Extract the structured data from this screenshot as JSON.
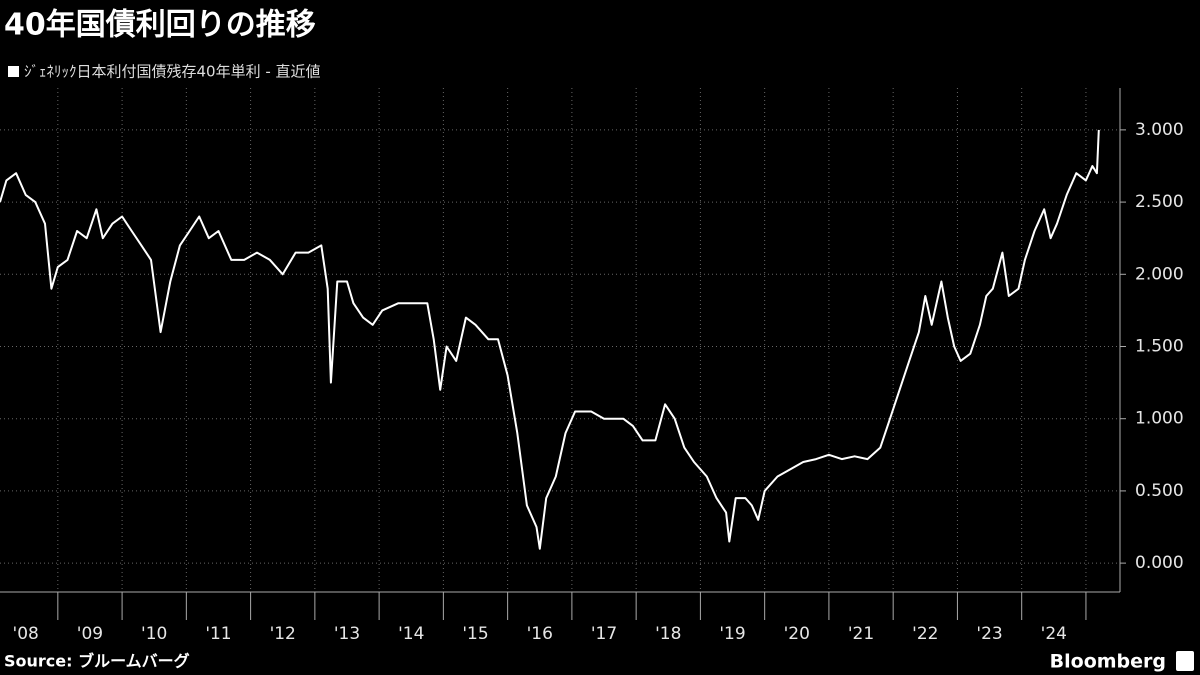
{
  "chart_data": {
    "type": "line",
    "title": "40年国債利回りの推移",
    "source": "Source: ブルームバーグ",
    "brand": "Bloomberg",
    "series": [
      {
        "name": "ｼﾞｪﾈﾘｯｸ日本利付国債残存40年単利 - 直近値",
        "color": "#ffffff",
        "x": [
          2008.1,
          2008.2,
          2008.35,
          2008.5,
          2008.65,
          2008.8,
          2008.9,
          2009.0,
          2009.15,
          2009.3,
          2009.45,
          2009.6,
          2009.7,
          2009.85,
          2010.0,
          2010.15,
          2010.3,
          2010.45,
          2010.6,
          2010.75,
          2010.9,
          2011.05,
          2011.2,
          2011.35,
          2011.5,
          2011.7,
          2011.9,
          2012.1,
          2012.3,
          2012.5,
          2012.7,
          2012.9,
          2013.1,
          2013.2,
          2013.25,
          2013.35,
          2013.5,
          2013.6,
          2013.75,
          2013.9,
          2014.05,
          2014.3,
          2014.5,
          2014.75,
          2014.85,
          2014.95,
          2015.05,
          2015.2,
          2015.35,
          2015.5,
          2015.7,
          2015.85,
          2016.0,
          2016.15,
          2016.3,
          2016.45,
          2016.5,
          2016.6,
          2016.75,
          2016.9,
          2017.05,
          2017.3,
          2017.5,
          2017.8,
          2017.95,
          2018.1,
          2018.3,
          2018.45,
          2018.6,
          2018.75,
          2018.9,
          2019.1,
          2019.25,
          2019.4,
          2019.45,
          2019.55,
          2019.7,
          2019.8,
          2019.9,
          2020.0,
          2020.2,
          2020.4,
          2020.6,
          2020.8,
          2021.0,
          2021.2,
          2021.4,
          2021.6,
          2021.8,
          2021.95,
          2022.1,
          2022.25,
          2022.4,
          2022.5,
          2022.6,
          2022.75,
          2022.85,
          2022.95,
          2023.05,
          2023.2,
          2023.35,
          2023.45,
          2023.55,
          2023.7,
          2023.8,
          2023.95,
          2024.05,
          2024.2,
          2024.35,
          2024.45,
          2024.55,
          2024.7,
          2024.85,
          2025.0,
          2025.1,
          2025.17,
          2025.2
        ],
        "values": [
          2.5,
          2.65,
          2.7,
          2.55,
          2.5,
          2.35,
          1.9,
          2.05,
          2.1,
          2.3,
          2.25,
          2.45,
          2.25,
          2.35,
          2.4,
          2.3,
          2.2,
          2.1,
          1.6,
          1.95,
          2.2,
          2.3,
          2.4,
          2.25,
          2.3,
          2.1,
          2.1,
          2.15,
          2.1,
          2.0,
          2.15,
          2.15,
          2.2,
          1.9,
          1.25,
          1.95,
          1.95,
          1.8,
          1.7,
          1.65,
          1.75,
          1.8,
          1.8,
          1.8,
          1.55,
          1.2,
          1.5,
          1.4,
          1.7,
          1.65,
          1.55,
          1.55,
          1.3,
          0.9,
          0.4,
          0.25,
          0.1,
          0.45,
          0.6,
          0.9,
          1.05,
          1.05,
          1.0,
          1.0,
          0.95,
          0.85,
          0.85,
          1.1,
          1.0,
          0.8,
          0.7,
          0.6,
          0.45,
          0.35,
          0.15,
          0.45,
          0.45,
          0.4,
          0.3,
          0.5,
          0.6,
          0.65,
          0.7,
          0.72,
          0.75,
          0.72,
          0.74,
          0.72,
          0.8,
          1.0,
          1.2,
          1.4,
          1.6,
          1.85,
          1.65,
          1.95,
          1.7,
          1.5,
          1.4,
          1.45,
          1.65,
          1.85,
          1.9,
          2.15,
          1.85,
          1.9,
          2.1,
          2.3,
          2.45,
          2.25,
          2.35,
          2.55,
          2.7,
          2.65,
          2.75,
          2.7,
          3.0
        ]
      }
    ],
    "xlim": [
      2008.1,
      2025.53
    ],
    "xticks": [
      {
        "value": 2008.5,
        "label": "'08"
      },
      {
        "value": 2009.5,
        "label": "'09"
      },
      {
        "value": 2010.5,
        "label": "'10"
      },
      {
        "value": 2011.5,
        "label": "'11"
      },
      {
        "value": 2012.5,
        "label": "'12"
      },
      {
        "value": 2013.5,
        "label": "'13"
      },
      {
        "value": 2014.5,
        "label": "'14"
      },
      {
        "value": 2015.5,
        "label": "'15"
      },
      {
        "value": 2016.5,
        "label": "'16"
      },
      {
        "value": 2017.5,
        "label": "'17"
      },
      {
        "value": 2018.5,
        "label": "'18"
      },
      {
        "value": 2019.5,
        "label": "'19"
      },
      {
        "value": 2020.5,
        "label": "'20"
      },
      {
        "value": 2021.5,
        "label": "'21"
      },
      {
        "value": 2022.5,
        "label": "'22"
      },
      {
        "value": 2023.5,
        "label": "'23"
      },
      {
        "value": 2024.5,
        "label": "'24"
      }
    ],
    "ylim": [
      -0.2,
      3.29
    ],
    "yticks": [
      {
        "value": 0,
        "label": "0.000"
      },
      {
        "value": 0.5,
        "label": "0.500"
      },
      {
        "value": 1,
        "label": "1.000"
      },
      {
        "value": 1.5,
        "label": "1.500"
      },
      {
        "value": 2,
        "label": "2.000"
      },
      {
        "value": 2.5,
        "label": "2.500"
      },
      {
        "value": 3,
        "label": "3.000"
      }
    ],
    "grid": true
  }
}
